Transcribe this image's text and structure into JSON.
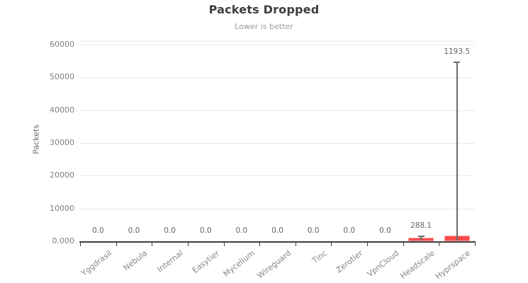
{
  "chart_data": {
    "type": "bar",
    "title": "Packets Dropped",
    "subtitle": "Lower is better",
    "ylabel": "Packets",
    "xlabel": "",
    "categories": [
      "Yggdrasil",
      "Nebula",
      "Internal",
      "Easytier",
      "Mycelium",
      "Wireguard",
      "Tinc",
      "Zerotier",
      "VpnCloud",
      "Headscale",
      "Hyprspace"
    ],
    "values": [
      0,
      0,
      0,
      0,
      0,
      0,
      0,
      0,
      0,
      288.1,
      1193.5
    ],
    "value_labels": [
      "0.0",
      "0.0",
      "0.0",
      "0.0",
      "0.0",
      "0.0",
      "0.0",
      "0.0",
      "0.0",
      "288.1",
      "1193.5"
    ],
    "error_high": [
      0,
      0,
      0,
      0,
      0,
      0,
      0,
      0,
      0,
      1700,
      54800
    ],
    "ylim": [
      0,
      60000
    ],
    "yticks": [
      {
        "value": 0,
        "label": "0.000"
      },
      {
        "value": 10000,
        "label": "10000"
      },
      {
        "value": 20000,
        "label": "20000"
      },
      {
        "value": 30000,
        "label": "30000"
      },
      {
        "value": 40000,
        "label": "40000"
      },
      {
        "value": 50000,
        "label": "50000"
      },
      {
        "value": 60000,
        "label": "60000"
      }
    ],
    "grid": true,
    "legend": "none",
    "colors": {
      "bar_fill": "#fb4b4b",
      "bar_edge": "#fd9e9e",
      "error_bar": "#6b6b6b",
      "gridline": "#e3e8f2",
      "axis_line": "#3f3f3f",
      "title_text": "#3d3d3d",
      "subtitle_text": "#9b9b9b",
      "tick_text": "#7f7f88"
    }
  }
}
